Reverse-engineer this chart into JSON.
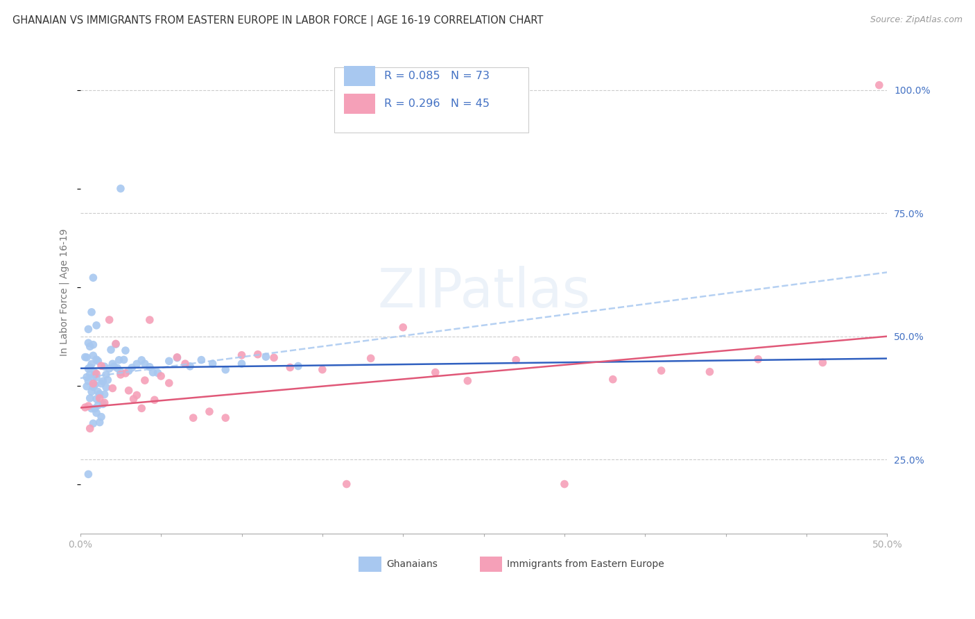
{
  "title": "GHANAIAN VS IMMIGRANTS FROM EASTERN EUROPE IN LABOR FORCE | AGE 16-19 CORRELATION CHART",
  "source": "Source: ZipAtlas.com",
  "ylabel": "In Labor Force | Age 16-19",
  "xlim": [
    0.0,
    0.5
  ],
  "ylim": [
    0.1,
    1.08
  ],
  "blue_color": "#A8C8F0",
  "pink_color": "#F5A0B8",
  "blue_line_color": "#3060C0",
  "pink_line_color": "#E05878",
  "dash_line_color": "#A8C8F0",
  "blue_R": 0.085,
  "blue_N": 73,
  "pink_R": 0.296,
  "pink_N": 45,
  "watermark_text": "ZIPatlas",
  "legend_label_blue": "Ghanaians",
  "legend_label_pink": "Immigrants from Eastern Europe",
  "blue_line_y0": 0.435,
  "blue_line_y1": 0.455,
  "pink_line_y0": 0.355,
  "pink_line_y1": 0.5,
  "dash_line_y0": 0.415,
  "dash_line_y1": 0.63
}
